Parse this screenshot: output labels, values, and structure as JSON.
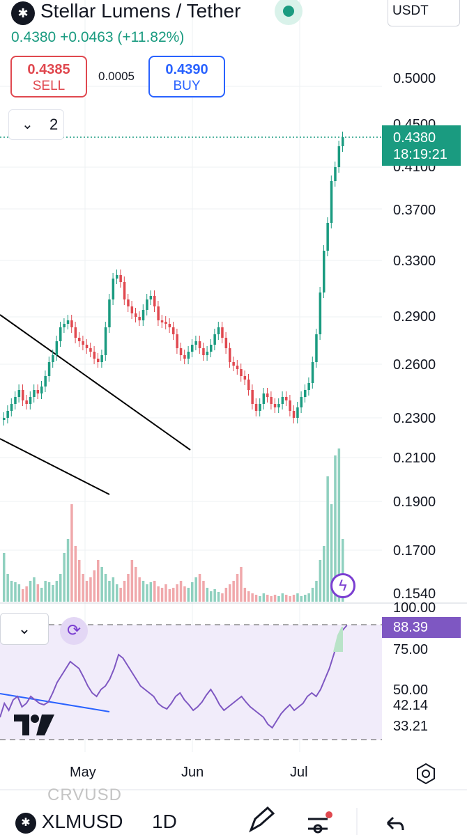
{
  "header": {
    "symbol_name": "Stellar Lumens / Tether",
    "currency": "USDT",
    "price": "0.4380",
    "change": "+0.0463 (+11.82%)",
    "logo_icon": "stellar-logo-icon",
    "live_icon": "market-open-dot-icon"
  },
  "quotes": {
    "sell_price": "0.4385",
    "sell_label": "SELL",
    "spread": "0.0005",
    "buy_price": "0.4390",
    "buy_label": "BUY"
  },
  "indicators_toggle": {
    "count": "2",
    "icon": "chevron-down-icon"
  },
  "price_scale": {
    "ticks": [
      "0.5000",
      "0.4500",
      "0.4100",
      "0.3700",
      "0.3300",
      "0.2900",
      "0.2600",
      "0.2300",
      "0.2100",
      "0.1900",
      "0.1700",
      "0.1540"
    ],
    "last_price": "0.4380",
    "countdown": "18:19:21"
  },
  "rsi_scale": {
    "ticks": [
      "100.00",
      "75.00",
      "50.00",
      "42.14",
      "33.21"
    ],
    "current": "88.39"
  },
  "time_axis": {
    "labels": [
      "May",
      "Jun",
      "Jul"
    ]
  },
  "bottom_bar": {
    "ghost_symbol": "CRVUSD",
    "symbol": "XLMUSD",
    "interval": "1D",
    "icons": [
      "draw-pencil-icon",
      "indicators-icon",
      "undo-icon"
    ]
  },
  "watermark": "TradingView",
  "colors": {
    "up": "#1a9b80",
    "down": "#e0484f",
    "rsi": "#7e57c2",
    "buy": "#2962ff"
  }
}
